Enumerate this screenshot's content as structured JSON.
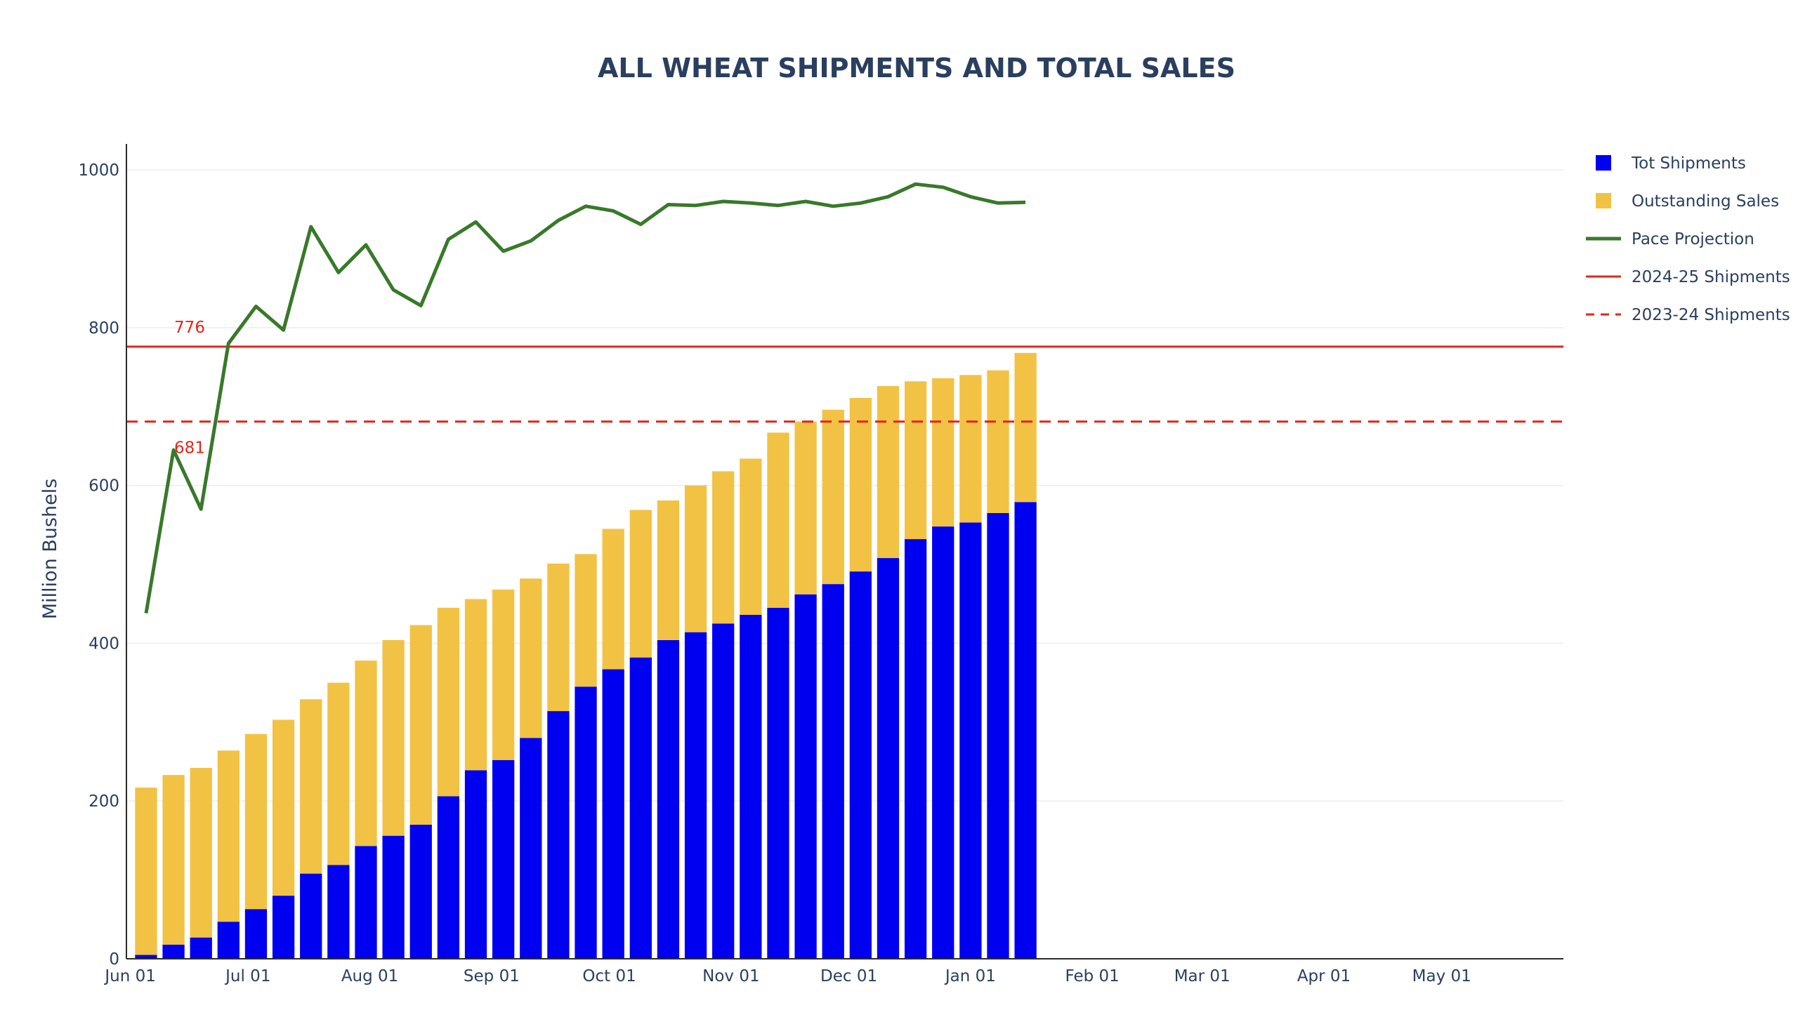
{
  "chart_data": {
    "type": "bar",
    "title": "ALL WHEAT SHIPMENTS AND TOTAL SALES",
    "ylabel": "Million Bushels",
    "xlabel": "",
    "ylim": [
      0,
      1033
    ],
    "xlim": [
      "2024-05-31",
      "2025-06-01"
    ],
    "barmode": "stack",
    "grid": true,
    "legend_position": "right",
    "yticks": [
      0,
      200,
      400,
      600,
      800,
      1000
    ],
    "xticks": [
      {
        "date": "2024-06-01",
        "label": "Jun 01"
      },
      {
        "date": "2024-07-01",
        "label": "Jul 01"
      },
      {
        "date": "2024-08-01",
        "label": "Aug 01"
      },
      {
        "date": "2024-09-01",
        "label": "Sep 01"
      },
      {
        "date": "2024-10-01",
        "label": "Oct 01"
      },
      {
        "date": "2024-11-01",
        "label": "Nov 01"
      },
      {
        "date": "2024-12-01",
        "label": "Dec 01"
      },
      {
        "date": "2025-01-01",
        "label": "Jan 01"
      },
      {
        "date": "2025-02-01",
        "label": "Feb 01"
      },
      {
        "date": "2025-03-01",
        "label": "Mar 01"
      },
      {
        "date": "2025-04-01",
        "label": "Apr 01"
      },
      {
        "date": "2025-05-01",
        "label": "May 01"
      }
    ],
    "x": [
      "2024-06-05",
      "2024-06-12",
      "2024-06-19",
      "2024-06-26",
      "2024-07-03",
      "2024-07-10",
      "2024-07-17",
      "2024-07-24",
      "2024-07-31",
      "2024-08-07",
      "2024-08-14",
      "2024-08-21",
      "2024-08-28",
      "2024-09-04",
      "2024-09-11",
      "2024-09-18",
      "2024-09-25",
      "2024-10-02",
      "2024-10-09",
      "2024-10-16",
      "2024-10-23",
      "2024-10-30",
      "2024-11-06",
      "2024-11-13",
      "2024-11-20",
      "2024-11-27",
      "2024-12-04",
      "2024-12-11",
      "2024-12-18",
      "2024-12-25",
      "2025-01-01",
      "2025-01-08",
      "2025-01-15"
    ],
    "series": [
      {
        "name": "Tot Shipments",
        "kind": "bar",
        "color": "#0000f0",
        "values": [
          5,
          18,
          27,
          47,
          63,
          80,
          108,
          119,
          143,
          156,
          170,
          206,
          239,
          252,
          280,
          314,
          345,
          367,
          382,
          404,
          414,
          425,
          436,
          445,
          462,
          475,
          491,
          508,
          532,
          548,
          553,
          565,
          579
        ]
      },
      {
        "name": "Outstanding Sales",
        "kind": "bar",
        "color": "#f2c244",
        "values": [
          212,
          215,
          215,
          217,
          222,
          223,
          221,
          231,
          235,
          248,
          253,
          239,
          217,
          216,
          202,
          187,
          168,
          178,
          187,
          177,
          186,
          193,
          198,
          222,
          219,
          221,
          220,
          218,
          200,
          188,
          187,
          181,
          189
        ]
      },
      {
        "name": "Pace Projection",
        "kind": "line",
        "color": "#38792a",
        "values": [
          438,
          645,
          570,
          780,
          827,
          797,
          928,
          870,
          905,
          848,
          828,
          912,
          934,
          897,
          910,
          936,
          954,
          948,
          931,
          956,
          955,
          960,
          958,
          955,
          960,
          954,
          958,
          966,
          982,
          978,
          966,
          958,
          959
        ]
      },
      {
        "name": "2024-25 Shipments",
        "kind": "hline",
        "color": "#e4251c",
        "dash": "solid",
        "value": 776,
        "label": "776"
      },
      {
        "name": "2023-24 Shipments",
        "kind": "hline",
        "color": "#e4251c",
        "dash": "dash",
        "value": 681,
        "label": "681"
      }
    ]
  }
}
